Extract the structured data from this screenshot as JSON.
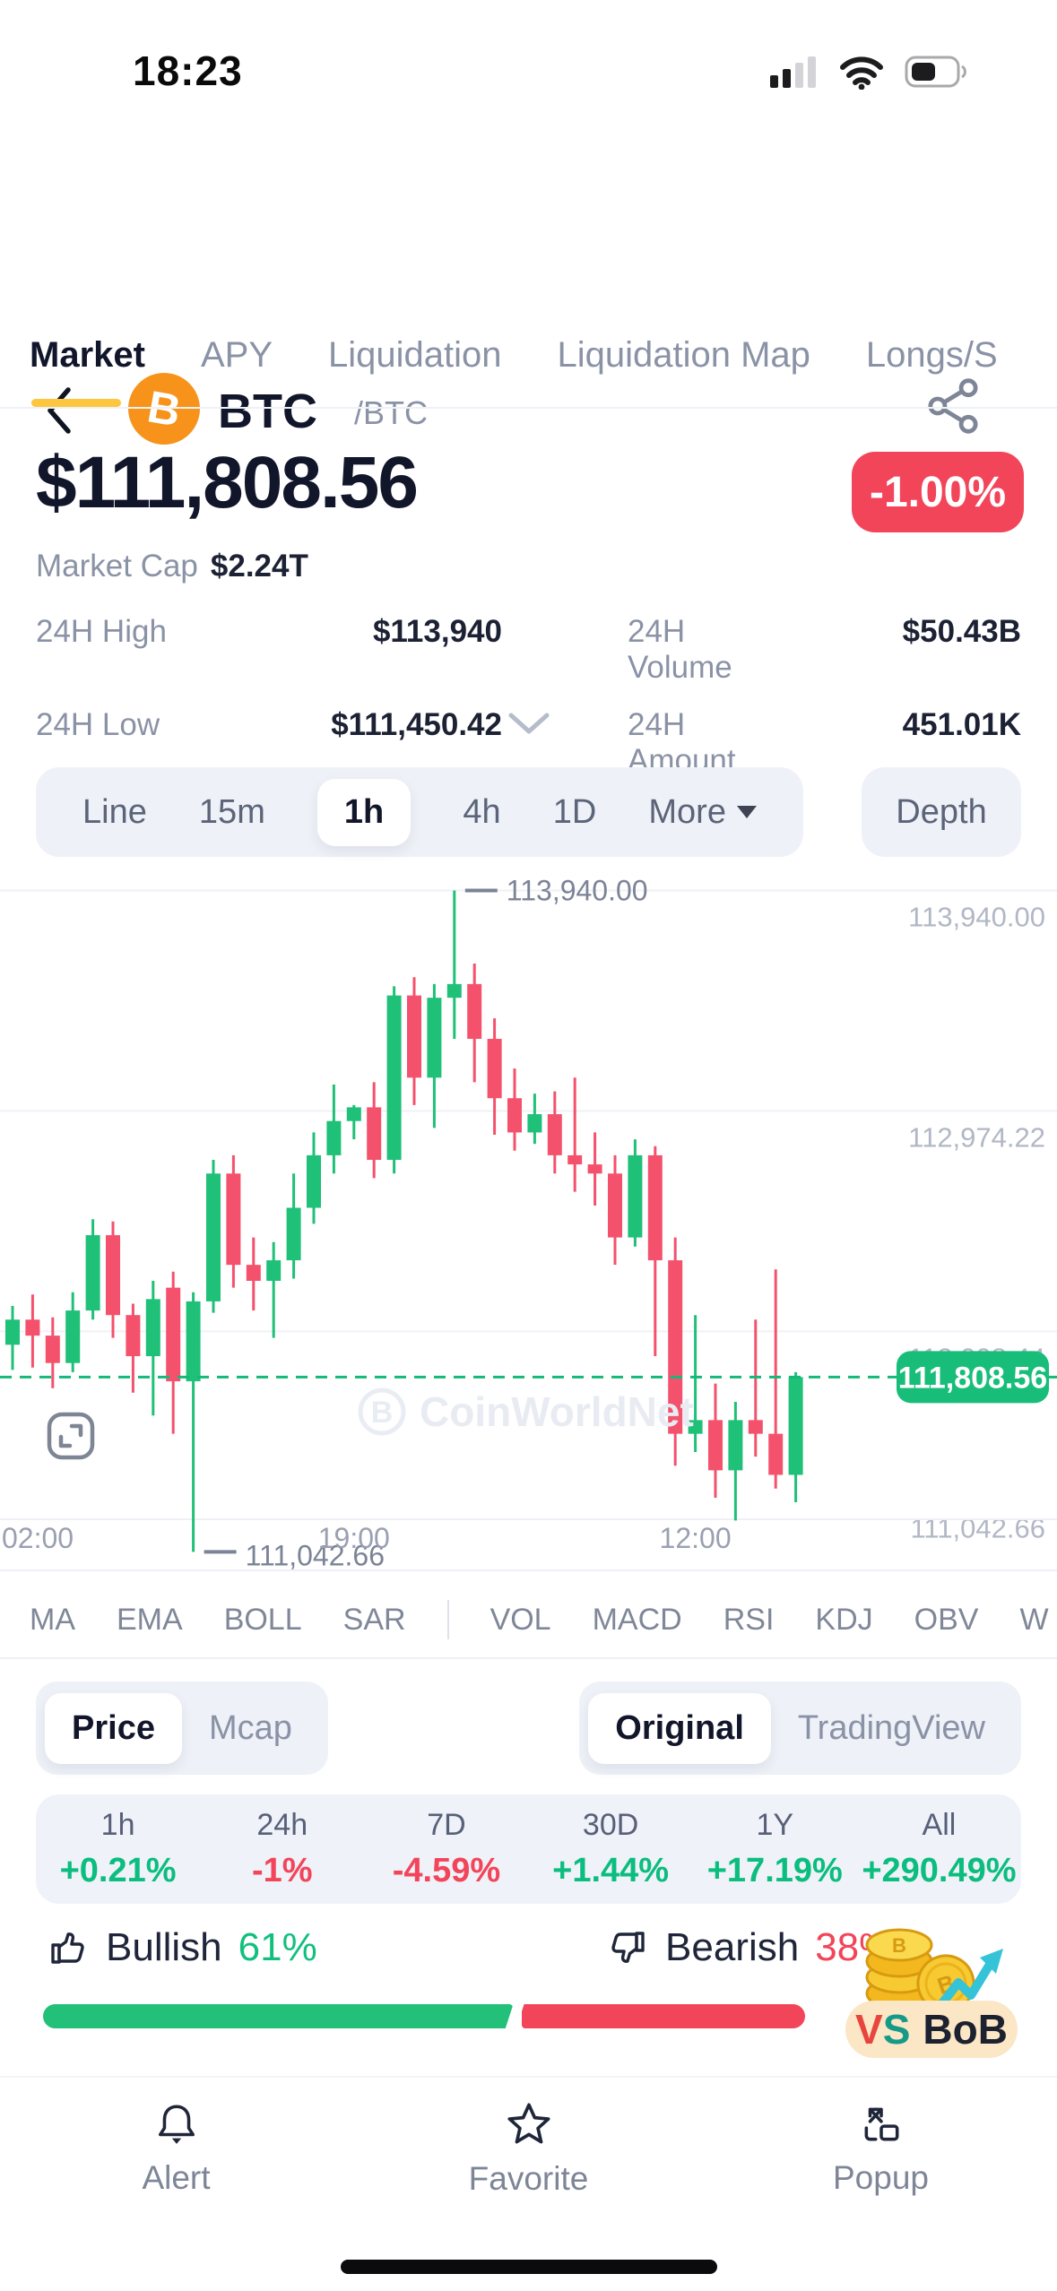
{
  "status_bar": {
    "time": "18:23",
    "signal_bars_active": 2,
    "signal_bars_total": 4,
    "battery_level_pct": 40
  },
  "header": {
    "symbol": "BTC",
    "pair": "/BTC"
  },
  "tabs": {
    "items": [
      "Market",
      "APY",
      "Liquidation",
      "Liquidation Map",
      "Longs/S"
    ],
    "active_index": 0
  },
  "price_section": {
    "price": "$111,808.56",
    "change": "-1.00%",
    "market_cap_label": "Market Cap",
    "market_cap_value": "$2.24T"
  },
  "stats": {
    "items": [
      {
        "label": "24H High",
        "value": "$113,940"
      },
      {
        "label": "24H Volume",
        "value": "$50.43B"
      },
      {
        "label": "24H Low",
        "value": "$111,450.42"
      },
      {
        "label": "24H Amount",
        "value": "451.01K"
      }
    ]
  },
  "chart_toolbar": {
    "intervals": [
      "Line",
      "15m",
      "1h",
      "4h",
      "1D",
      "More"
    ],
    "active": "1h",
    "depth_label": "Depth"
  },
  "chart_data": {
    "type": "candlestick",
    "interval": "1h",
    "watermark": "CoinWorldNet",
    "up_color": "#1fc077",
    "down_color": "#f4516c",
    "grid_on": true,
    "y_axis_labels": [
      {
        "value": 113940.0,
        "label": "113,940.00"
      },
      {
        "value": 112974.22,
        "label": "112,974.22"
      },
      {
        "value": 112008.44,
        "label": "112,008.44"
      },
      {
        "value": 111042.66,
        "label": "111,042.66"
      }
    ],
    "x_axis_labels": [
      {
        "label": "02:00",
        "candle_index": 0
      },
      {
        "label": "19:00",
        "candle_index": 17
      },
      {
        "label": "12:00",
        "candle_index": 34
      }
    ],
    "current_price": {
      "value": 111808.56,
      "label": "111,808.56"
    },
    "high_annotation": {
      "value": 113940.0,
      "label": "113,940.00",
      "candle_index": 22
    },
    "low_annotation": {
      "value": 111042.66,
      "label": "111,042.66",
      "candle_index": 9
    },
    "y_domain": [
      110950,
      114091
    ],
    "candles_ohlc": [
      [
        111950,
        112120,
        111840,
        112060
      ],
      [
        112060,
        112170,
        111850,
        111990
      ],
      [
        111990,
        112070,
        111760,
        111870
      ],
      [
        111870,
        112180,
        111830,
        112100
      ],
      [
        112100,
        112500,
        112060,
        112430
      ],
      [
        112430,
        112490,
        111980,
        112080
      ],
      [
        112080,
        112130,
        111740,
        111900
      ],
      [
        111900,
        112230,
        111640,
        112150
      ],
      [
        112200,
        112270,
        111560,
        111790
      ],
      [
        111790,
        112180,
        111042.66,
        112140
      ],
      [
        112140,
        112760,
        112090,
        112700
      ],
      [
        112700,
        112780,
        112200,
        112300
      ],
      [
        112300,
        112420,
        112100,
        112230
      ],
      [
        112230,
        112400,
        111980,
        112320
      ],
      [
        112320,
        112700,
        112240,
        112550
      ],
      [
        112550,
        112880,
        112480,
        112780
      ],
      [
        112780,
        113090,
        112700,
        112930
      ],
      [
        112930,
        113000,
        112850,
        112990
      ],
      [
        112990,
        113100,
        112680,
        112760
      ],
      [
        112760,
        113520,
        112700,
        113480
      ],
      [
        113480,
        113560,
        113000,
        113120
      ],
      [
        113120,
        113530,
        112900,
        113470
      ],
      [
        113470,
        113940,
        113290,
        113530
      ],
      [
        113530,
        113620,
        113100,
        113290
      ],
      [
        113290,
        113380,
        112870,
        113030
      ],
      [
        113030,
        113160,
        112800,
        112880
      ],
      [
        112880,
        113050,
        112830,
        112960
      ],
      [
        112960,
        113060,
        112700,
        112780
      ],
      [
        112780,
        113120,
        112620,
        112740
      ],
      [
        112740,
        112880,
        112560,
        112700
      ],
      [
        112700,
        112780,
        112300,
        112420
      ],
      [
        112420,
        112850,
        112380,
        112780
      ],
      [
        112780,
        112820,
        111900,
        112320
      ],
      [
        112320,
        112420,
        111420,
        111560
      ],
      [
        111560,
        112080,
        111480,
        111620
      ],
      [
        111620,
        111780,
        111280,
        111400
      ],
      [
        111400,
        111700,
        111180,
        111620
      ],
      [
        111620,
        112060,
        111460,
        111560
      ],
      [
        111560,
        112280,
        111320,
        111380
      ],
      [
        111380,
        111830,
        111260,
        111808.56
      ]
    ]
  },
  "indicators": {
    "groups": [
      [
        "MA",
        "EMA",
        "BOLL",
        "SAR"
      ],
      [
        "VOL",
        "MACD",
        "RSI",
        "KDJ",
        "OBV",
        "W"
      ]
    ]
  },
  "view_toggles": {
    "metric": {
      "options": [
        "Price",
        "Mcap"
      ],
      "active": "Price"
    },
    "source": {
      "options": [
        "Original",
        "TradingView"
      ],
      "active": "Original"
    }
  },
  "performance": {
    "items": [
      {
        "label": "1h",
        "value": "+0.21%",
        "direction": "up"
      },
      {
        "label": "24h",
        "value": "-1%",
        "direction": "down"
      },
      {
        "label": "7D",
        "value": "-4.59%",
        "direction": "down"
      },
      {
        "label": "30D",
        "value": "+1.44%",
        "direction": "up"
      },
      {
        "label": "1Y",
        "value": "+17.19%",
        "direction": "up"
      },
      {
        "label": "All",
        "value": "+290.49%",
        "direction": "up"
      }
    ]
  },
  "sentiment": {
    "bullish_label": "Bullish",
    "bullish_pct": "61%",
    "bullish_value": 61,
    "bearish_label": "Bearish",
    "bearish_pct": "38%",
    "bearish_value": 38,
    "vs_label": "VS",
    "bob_label": "BoB"
  },
  "bottom_nav": {
    "items": [
      {
        "label": "Alert"
      },
      {
        "label": "Favorite"
      },
      {
        "label": "Popup"
      }
    ]
  },
  "colors": {
    "accent_yellow": "#fcc73f",
    "badge_red": "#f2455a",
    "price_tag_green": "#17bd78",
    "up_text_green": "#0bbd7e",
    "brand_orange": "#f7931a"
  },
  "icons": [
    "back-chevron-icon",
    "bitcoin-logo-icon",
    "share-icon",
    "chevron-down-icon",
    "more-caret-icon",
    "expand-icon",
    "watermark-coin-icon",
    "thumbs-up-icon",
    "thumbs-down-icon",
    "coins-arrow-art",
    "bell-icon",
    "star-icon",
    "popup-icon",
    "signal-icon",
    "wifi-icon",
    "battery-icon"
  ]
}
